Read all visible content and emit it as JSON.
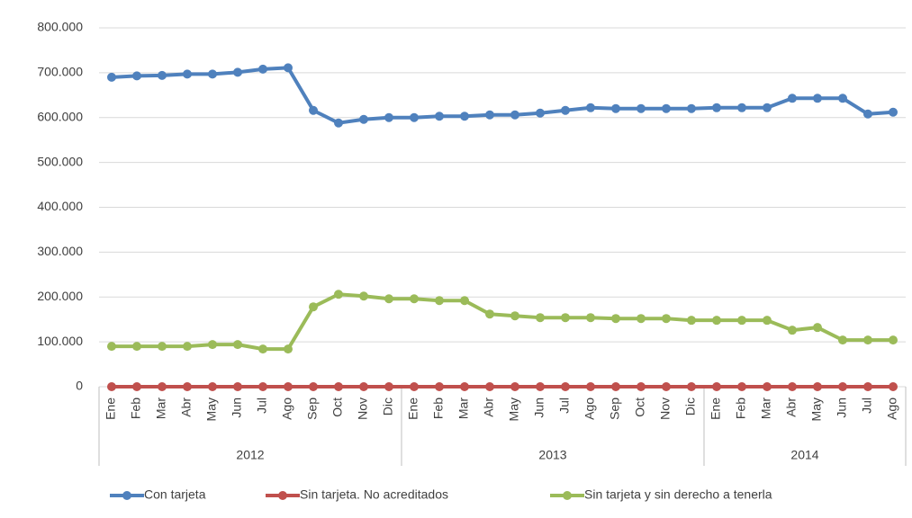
{
  "chart_data": {
    "type": "line",
    "groups": [
      {
        "name": "2012",
        "categories": [
          "Ene",
          "Feb",
          "Mar",
          "Abr",
          "May",
          "Jun",
          "Jul",
          "Ago",
          "Sep",
          "Oct",
          "Nov",
          "Dic"
        ]
      },
      {
        "name": "2013",
        "categories": [
          "Ene",
          "Feb",
          "Mar",
          "Abr",
          "May",
          "Jun",
          "Jul",
          "Ago",
          "Sep",
          "Oct",
          "Nov",
          "Dic"
        ]
      },
      {
        "name": "2014",
        "categories": [
          "Ene",
          "Feb",
          "Mar",
          "Abr",
          "May",
          "Jun",
          "Jul",
          "Ago"
        ]
      }
    ],
    "series": [
      {
        "name": "Con tarjeta",
        "color": "#4f81bd",
        "values": [
          690000,
          693000,
          694000,
          697000,
          697000,
          701000,
          708000,
          711000,
          616000,
          588000,
          596000,
          600000,
          600000,
          603000,
          603000,
          606000,
          606000,
          610000,
          616000,
          622000,
          620000,
          620000,
          620000,
          620000,
          622000,
          622000,
          622000,
          643000,
          643000,
          643000,
          608000,
          612000
        ]
      },
      {
        "name": "Sin tarjeta. No acreditados",
        "color": "#c0504d",
        "values": [
          0,
          0,
          0,
          0,
          0,
          0,
          0,
          0,
          0,
          0,
          0,
          0,
          0,
          0,
          0,
          0,
          0,
          0,
          0,
          0,
          0,
          0,
          0,
          0,
          0,
          0,
          0,
          0,
          0,
          0,
          0,
          0
        ]
      },
      {
        "name": "Sin tarjeta y sin derecho a tenerla",
        "color": "#9bbb59",
        "values": [
          90000,
          90000,
          90000,
          90000,
          94000,
          94000,
          84000,
          84000,
          178000,
          206000,
          202000,
          196000,
          196000,
          192000,
          192000,
          162000,
          158000,
          154000,
          154000,
          154000,
          152000,
          152000,
          152000,
          148000,
          148000,
          148000,
          148000,
          126000,
          132000,
          104000,
          104000,
          104000
        ]
      }
    ],
    "ylim": [
      0,
      800000
    ],
    "yticks": [
      0,
      {
        "value": 100000,
        "label": "100.000"
      },
      {
        "value": 200000,
        "label": "200.000"
      },
      {
        "value": 300000,
        "label": "300.000"
      },
      {
        "value": 400000,
        "label": "400.000"
      },
      {
        "value": 500000,
        "label": "500.000"
      },
      {
        "value": 600000,
        "label": "600.000"
      },
      {
        "value": 700000,
        "label": "700.000"
      },
      {
        "value": 800000,
        "label": "800.000"
      }
    ],
    "grid": true,
    "legend": "bottom"
  }
}
